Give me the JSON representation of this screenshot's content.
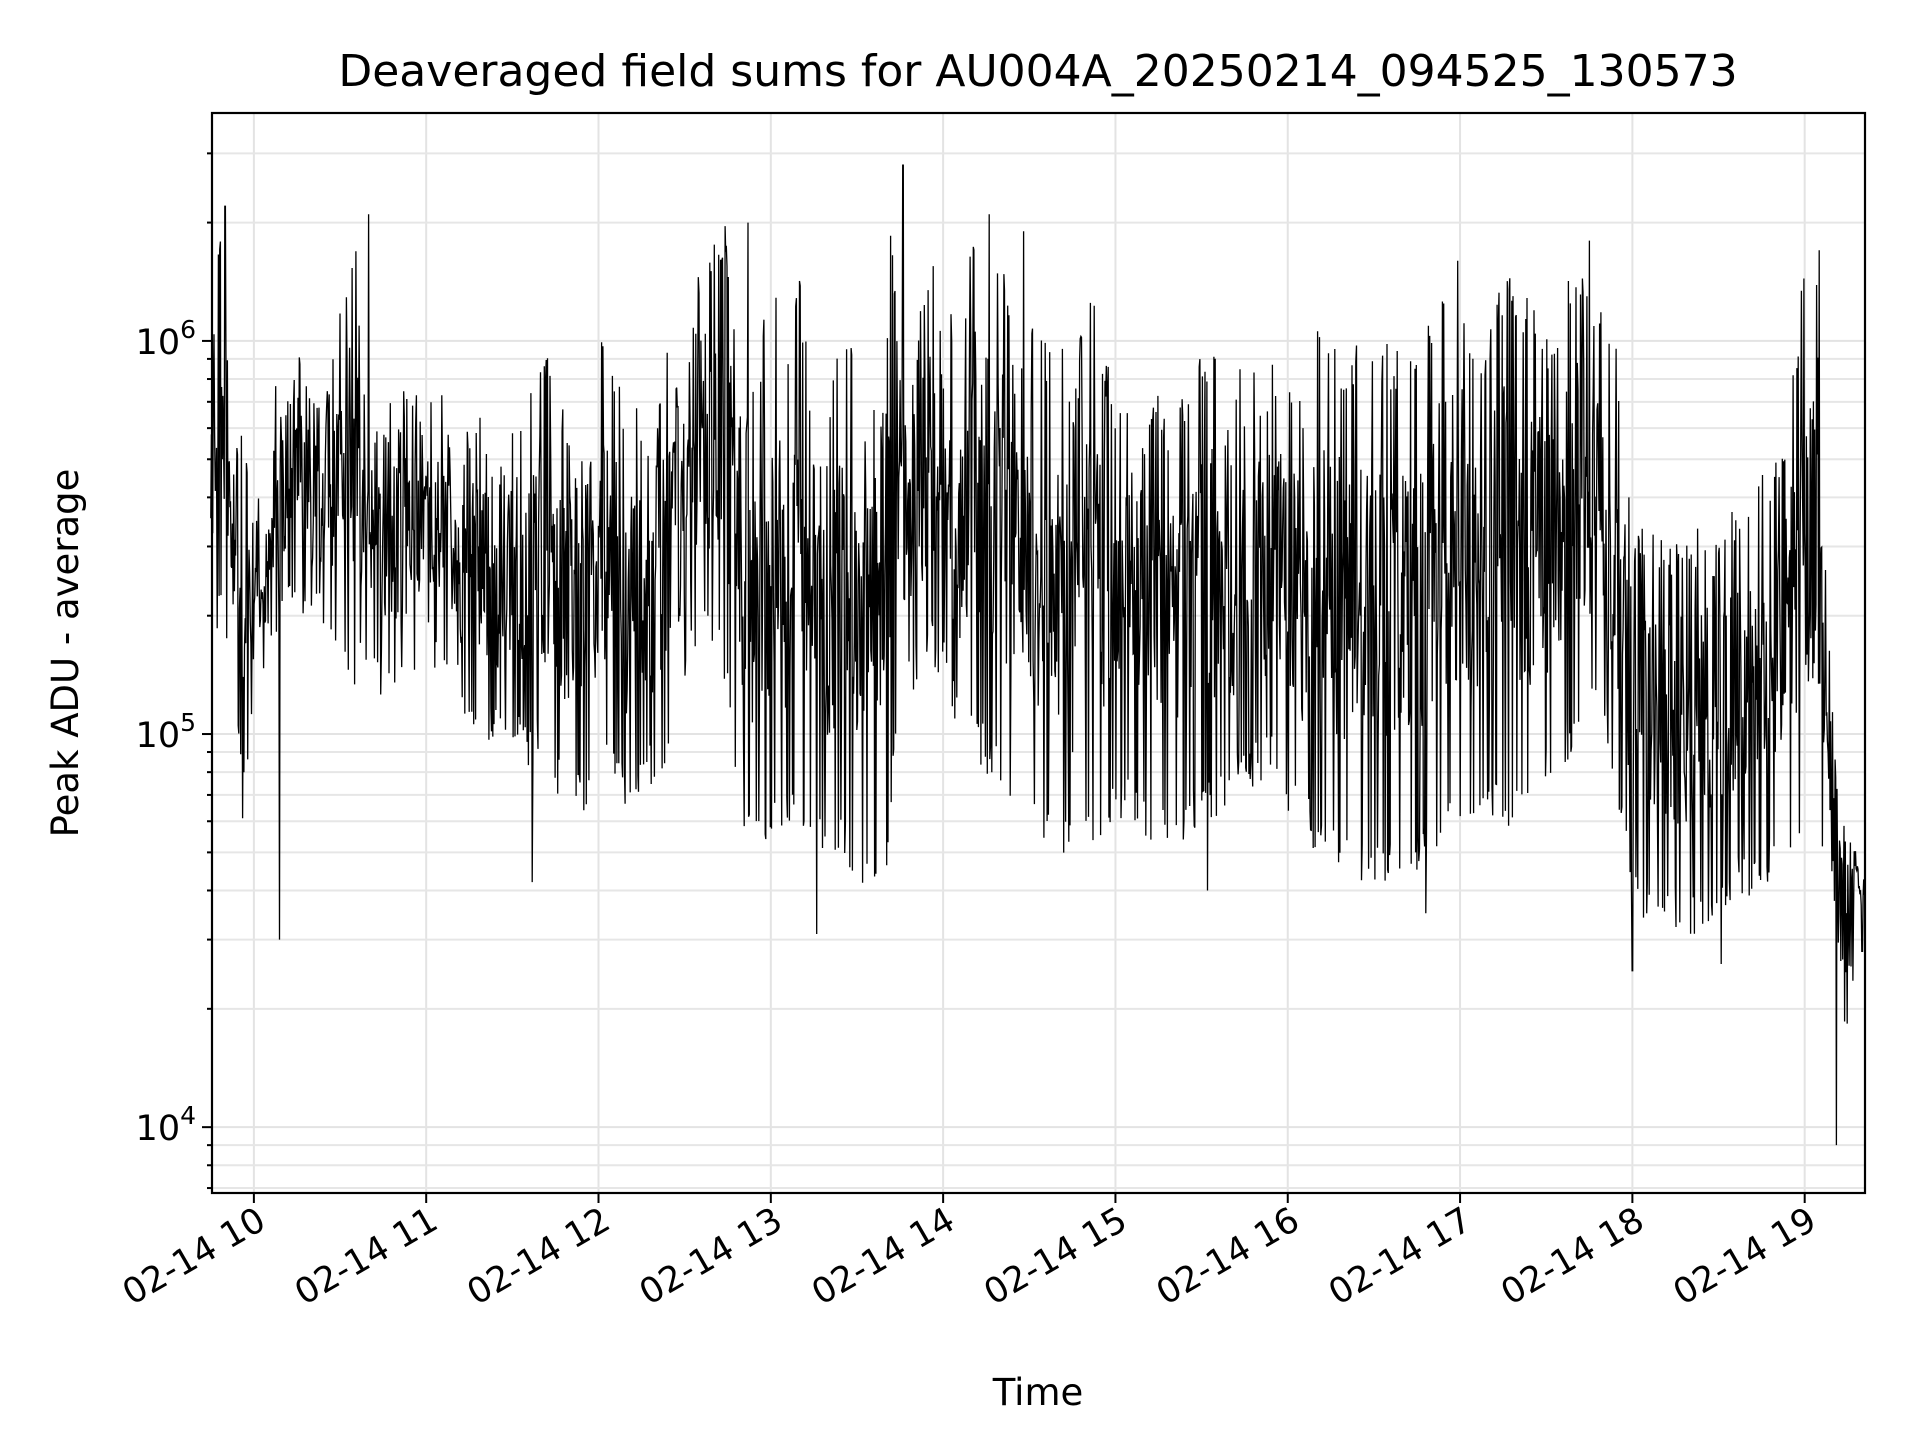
{
  "chart_data": {
    "type": "line",
    "title": "Deaveraged field sums for AU004A_20250214_094525_130573",
    "xlabel": "Time",
    "ylabel": "Peak ADU - average",
    "yscale": "log",
    "ylim": [
      6800,
      3800000
    ],
    "xlim": [
      "02-14 09:45:25",
      "02-14 19:21:00"
    ],
    "grid": true,
    "line_color": "#000000",
    "xticks": [
      {
        "t": "02-14 10:00",
        "label": "02-14 10"
      },
      {
        "t": "02-14 11:00",
        "label": "02-14 11"
      },
      {
        "t": "02-14 12:00",
        "label": "02-14 12"
      },
      {
        "t": "02-14 13:00",
        "label": "02-14 13"
      },
      {
        "t": "02-14 14:00",
        "label": "02-14 14"
      },
      {
        "t": "02-14 15:00",
        "label": "02-14 15"
      },
      {
        "t": "02-14 16:00",
        "label": "02-14 16"
      },
      {
        "t": "02-14 17:00",
        "label": "02-14 17"
      },
      {
        "t": "02-14 18:00",
        "label": "02-14 18"
      },
      {
        "t": "02-14 19:00",
        "label": "02-14 19"
      }
    ],
    "yticks": [
      {
        "value": 10000,
        "base": "10",
        "exp": "4"
      },
      {
        "value": 100000,
        "base": "10",
        "exp": "5"
      },
      {
        "value": 1000000,
        "base": "10",
        "exp": "6"
      }
    ],
    "series": [
      {
        "x": [
          "02-14 09:45",
          "02-14 09:48",
          "02-14 09:52",
          "02-14 09:56",
          "02-14 10:00",
          "02-14 10:04",
          "02-14 10:08",
          "02-14 10:12",
          "02-14 10:16",
          "02-14 10:20",
          "02-14 10:25",
          "02-14 10:30",
          "02-14 10:35",
          "02-14 10:40",
          "02-14 10:45",
          "02-14 10:50",
          "02-14 10:55",
          "02-14 11:00",
          "02-14 11:05",
          "02-14 11:10",
          "02-14 11:15",
          "02-14 11:20",
          "02-14 11:25",
          "02-14 11:30",
          "02-14 11:35",
          "02-14 11:40",
          "02-14 11:45",
          "02-14 11:50",
          "02-14 11:55",
          "02-14 12:00",
          "02-14 12:05",
          "02-14 12:10",
          "02-14 12:15",
          "02-14 12:20",
          "02-14 12:25",
          "02-14 12:30",
          "02-14 12:35",
          "02-14 12:40",
          "02-14 12:45",
          "02-14 12:50",
          "02-14 12:55",
          "02-14 13:00",
          "02-14 13:05",
          "02-14 13:10",
          "02-14 13:15",
          "02-14 13:20",
          "02-14 13:25",
          "02-14 13:30",
          "02-14 13:35",
          "02-14 13:40",
          "02-14 13:45",
          "02-14 13:50",
          "02-14 13:55",
          "02-14 14:00",
          "02-14 14:05",
          "02-14 14:10",
          "02-14 14:15",
          "02-14 14:20",
          "02-14 14:25",
          "02-14 14:30",
          "02-14 14:35",
          "02-14 14:40",
          "02-14 14:45",
          "02-14 14:50",
          "02-14 14:55",
          "02-14 15:00",
          "02-14 15:05",
          "02-14 15:10",
          "02-14 15:15",
          "02-14 15:20",
          "02-14 15:25",
          "02-14 15:30",
          "02-14 15:35",
          "02-14 15:40",
          "02-14 15:45",
          "02-14 15:50",
          "02-14 15:55",
          "02-14 16:00",
          "02-14 16:05",
          "02-14 16:10",
          "02-14 16:15",
          "02-14 16:20",
          "02-14 16:25",
          "02-14 16:30",
          "02-14 16:35",
          "02-14 16:40",
          "02-14 16:45",
          "02-14 16:50",
          "02-14 16:55",
          "02-14 17:00",
          "02-14 17:05",
          "02-14 17:10",
          "02-14 17:15",
          "02-14 17:20",
          "02-14 17:25",
          "02-14 17:30",
          "02-14 17:35",
          "02-14 17:40",
          "02-14 17:45",
          "02-14 17:50",
          "02-14 17:55",
          "02-14 18:00",
          "02-14 18:05",
          "02-14 18:10",
          "02-14 18:15",
          "02-14 18:20",
          "02-14 18:25",
          "02-14 18:30",
          "02-14 18:35",
          "02-14 18:40",
          "02-14 18:45",
          "02-14 18:50",
          "02-14 18:55",
          "02-14 19:00",
          "02-14 19:04",
          "02-14 19:08",
          "02-14 19:12",
          "02-14 19:15",
          "02-14 19:18",
          "02-14 19:21"
        ],
        "hi": [
          800000,
          2200000,
          700000,
          600000,
          450000,
          350000,
          850000,
          700000,
          1000000,
          750000,
          700000,
          1300000,
          2100000,
          600000,
          650000,
          750000,
          850000,
          700000,
          800000,
          500000,
          650000,
          700000,
          450000,
          700000,
          650000,
          1000000,
          800000,
          650000,
          950000,
          1300000,
          950000,
          700000,
          700000,
          600000,
          1100000,
          700000,
          1600000,
          1800000,
          2000000,
          600000,
          800000,
          1800000,
          850000,
          1500000,
          600000,
          600000,
          1400000,
          850000,
          1300000,
          2800000,
          950000,
          1000000,
          1600000,
          1800000,
          850000,
          2100000,
          2000000,
          1900000,
          950000,
          1300000,
          1000000,
          1200000,
          700000,
          1400000,
          1100000,
          700000,
          900000,
          650000,
          750000,
          650000,
          800000,
          1000000,
          900000,
          600000,
          1050000,
          800000,
          900000,
          850000,
          700000,
          1150000,
          1000000,
          900000,
          1050000,
          1000000,
          1000000,
          950000,
          1100000,
          1100000,
          1700000,
          1600000,
          950000,
          1100000,
          1500000,
          1400000,
          1300000,
          1100000,
          1200000,
          1800000,
          1600000,
          1100000,
          950000,
          350000,
          340000,
          330000,
          330000,
          350000,
          350000,
          320000,
          380000,
          350000,
          500000,
          500000,
          700000,
          1700000,
          1600000,
          200000,
          80000,
          60000,
          55000,
          48000
        ],
        "lo": [
          200000,
          180000,
          160000,
          60000,
          130000,
          150000,
          180000,
          190000,
          200000,
          170000,
          190000,
          160000,
          130000,
          150000,
          120000,
          110000,
          130000,
          120000,
          140000,
          120000,
          100000,
          90000,
          100000,
          90000,
          80000,
          85000,
          70000,
          65000,
          60000,
          70000,
          80000,
          60000,
          70000,
          75000,
          80000,
          140000,
          160000,
          150000,
          130000,
          50000,
          55000,
          52000,
          60000,
          55000,
          48000,
          45000,
          50000,
          42000,
          40000,
          42000,
          110000,
          130000,
          150000,
          140000,
          100000,
          90000,
          80000,
          70000,
          60000,
          55000,
          50000,
          48000,
          45000,
          48000,
          55000,
          60000,
          58000,
          55000,
          52000,
          48000,
          55000,
          60000,
          60000,
          65000,
          70000,
          75000,
          80000,
          60000,
          55000,
          50000,
          48000,
          45000,
          42000,
          42000,
          40000,
          45000,
          45000,
          48000,
          52000,
          50000,
          55000,
          60000,
          55000,
          58000,
          60000,
          70000,
          80000,
          90000,
          100000,
          110000,
          60000,
          38000,
          32000,
          30000,
          32000,
          30000,
          32000,
          35000,
          38000,
          36000,
          40000,
          45000,
          50000,
          55000,
          60000,
          40000,
          28000,
          11000,
          35000,
          30000
        ],
        "spikes": [
          {
            "t": "02-14 09:50",
            "value": 2200000
          },
          {
            "t": "02-14 10:09",
            "value": 30000
          },
          {
            "t": "02-14 10:40",
            "value": 2100000
          },
          {
            "t": "02-14 11:37",
            "value": 42000
          },
          {
            "t": "02-14 12:52",
            "value": 2000000
          },
          {
            "t": "02-14 13:16",
            "value": 31000
          },
          {
            "t": "02-14 13:46",
            "value": 2800000
          },
          {
            "t": "02-14 14:16",
            "value": 2100000
          },
          {
            "t": "02-14 14:28",
            "value": 1900000
          },
          {
            "t": "02-14 15:32",
            "value": 40000
          },
          {
            "t": "02-14 16:48",
            "value": 35000
          },
          {
            "t": "02-14 17:45",
            "value": 1800000
          },
          {
            "t": "02-14 18:00",
            "value": 25000
          },
          {
            "t": "02-14 18:31",
            "value": 26000
          },
          {
            "t": "02-14 19:05",
            "value": 1700000
          },
          {
            "t": "02-14 19:11",
            "value": 9000
          },
          {
            "t": "02-14 19:20",
            "value": 28000
          }
        ]
      }
    ]
  }
}
